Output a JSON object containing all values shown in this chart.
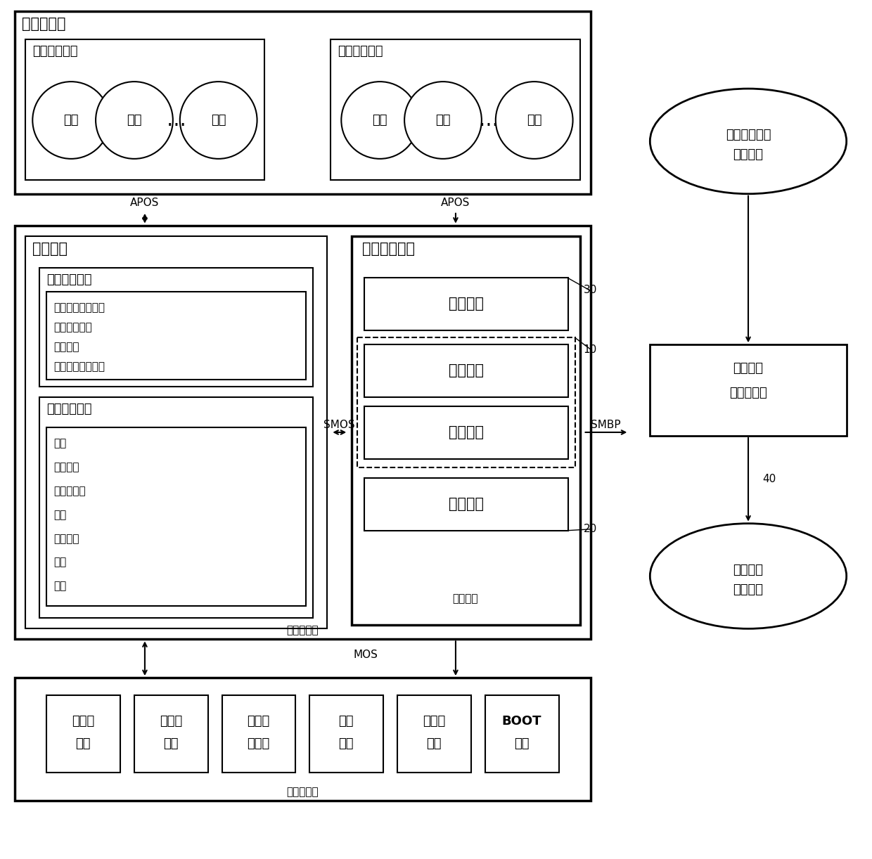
{
  "bg_color": "#ffffff",
  "fig_width": 12.4,
  "fig_height": 12.22,
  "labels": {
    "app_layer": "应用软件层",
    "func_app": "功能应用软件",
    "app_mgr": "应用管理软件",
    "process": "处理",
    "dots": "…",
    "apos": "APOS",
    "os": "操作系统",
    "os_ext": "操作系统扩展",
    "os_ext_line1": "虚拟通道管理服务",
    "os_ext_line2": "故障管理服务",
    "os_ext_line3": "安全服务",
    "os_ext_line4": "数据库客户端服务",
    "rtos": "实时操作系统",
    "rtos_line1": "调度",
    "rtos_line2": "线程服务",
    "rtos_line3": "虚拟存储器",
    "rtos_line4": "通信",
    "rtos_line5": "文件装载",
    "rtos_line6": "同步",
    "rtos_line7": "定时",
    "gen_sys_mgr": "通用系统管理",
    "health_mon": "健康监视",
    "fault_mgr": "故障管理",
    "config_mgr": "配置管理",
    "security_mgr": "安全管理",
    "sys_mgr": "系统管理",
    "os_layer": "操作系统层",
    "smos": "SMOS",
    "smbp": "SMBP",
    "mos": "MOS",
    "num_10": "10",
    "num_20": "20",
    "num_30": "30",
    "num_40": "40",
    "app_blueprint_line1": "应用软件蓝印",
    "app_blueprint_line2": "（设计）",
    "sys_blueprint_line1": "系统蓝印",
    "sys_blueprint_line2": "（运行时）",
    "res_blueprint_line1": "资源蓝印",
    "res_blueprint_line2": "（设计）",
    "module_layer": "模块支持层",
    "storage_res_line1": "存储器",
    "storage_res_line2": "资源",
    "timer_res_line1": "定时器",
    "timer_res_line2": "资源",
    "comm_res_line1": "通信资",
    "comm_res_line2": "源管理",
    "interrupt_res_line1": "中断",
    "interrupt_res_line2": "资源",
    "selftest_res_line1": "自测试",
    "selftest_res_line2": "资源",
    "boot_line1": "BOOT",
    "boot_line2": "下载"
  }
}
